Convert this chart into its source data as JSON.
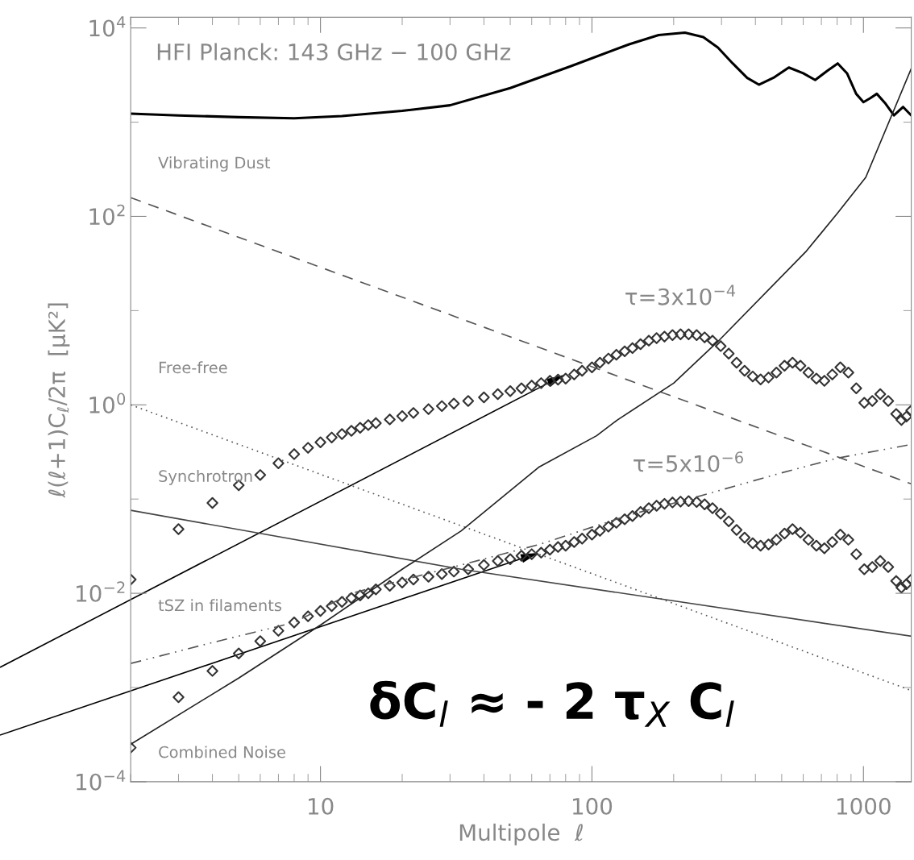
{
  "chart_data": {
    "type": "line",
    "title": "HFI Planck: 143 GHz − 100 GHz",
    "xlabel": "Multipole  ℓ",
    "ylabel": "ℓ(ℓ+1)C$_{ℓ}$/2π  [μK²]",
    "log": "xy",
    "xlim": [
      2,
      1500
    ],
    "ylim": [
      0.0001,
      13000
    ],
    "xticks": [
      10,
      100,
      1000
    ],
    "yticks": [
      {
        "value": 10000,
        "label": "10$^{4}$"
      },
      {
        "value": 100,
        "label": "10$^{2}$"
      },
      {
        "value": 1,
        "label": "10$^{0}$"
      },
      {
        "value": 0.01,
        "label": "10$^{−2}$"
      },
      {
        "value": 0.0001,
        "label": "10$^{−4}$"
      }
    ],
    "series": [
      {
        "color": "#000000",
        "line_style": "solid",
        "x": [
          2,
          3,
          5,
          8,
          12,
          20,
          30,
          50,
          83,
          137,
          176,
          220,
          257,
          291,
          330,
          373,
          412,
          470,
          531,
          600,
          664,
          735,
          804,
          870,
          940,
          1000,
          1060,
          1120,
          1200,
          1295,
          1400,
          1500
        ],
        "values": [
          1230,
          1180,
          1130,
          1100,
          1160,
          1320,
          1510,
          2300,
          3900,
          6700,
          8400,
          8900,
          8000,
          6200,
          4200,
          2950,
          2500,
          3000,
          3800,
          3300,
          2800,
          3500,
          4200,
          3300,
          2000,
          1630,
          1800,
          2000,
          1600,
          1180,
          1450,
          1180
        ]
      },
      {
        "color": "#555555",
        "line_style": "dashed",
        "x": [
          2,
          1500
        ],
        "values": [
          158,
          0.145
        ]
      },
      {
        "color": "#555555",
        "line_style": "dotted",
        "x": [
          2,
          1500
        ],
        "values": [
          1.0,
          0.00093
        ]
      },
      {
        "color": "#444444",
        "line_style": "solid",
        "x": [
          2,
          33,
          1500
        ],
        "values": [
          0.076,
          0.018,
          0.0035
        ]
      },
      {
        "color": "#555555",
        "line_style": "dashdot",
        "x": [
          2,
          4,
          8,
          13,
          33,
          64,
          138,
          228,
          500,
          793,
          1500
        ],
        "values": [
          0.0018,
          0.003,
          0.0049,
          0.01,
          0.02,
          0.033,
          0.068,
          0.1,
          0.19,
          0.27,
          0.38
        ]
      },
      {
        "color": "#222222",
        "line_style": "solid",
        "x": [
          2,
          5,
          10,
          20,
          33,
          64,
          104,
          124,
          200,
          291,
          617,
          800,
          1020,
          1500
        ],
        "values": [
          0.00025,
          0.00126,
          0.0046,
          0.018,
          0.046,
          0.22,
          0.47,
          0.69,
          1.7,
          4.7,
          43,
          107,
          260,
          3700
        ]
      },
      {
        "type": "scatter",
        "name": "τ=3x10$^{−4}$",
        "color": "#333333",
        "marker": "diamond",
        "x": [
          2,
          3,
          4,
          5,
          6,
          7,
          8,
          9,
          10,
          11,
          12,
          13,
          14,
          15,
          16,
          18,
          20,
          22,
          25,
          28,
          31,
          35,
          40,
          45,
          50,
          55,
          60,
          65,
          70,
          75,
          80,
          86,
          92,
          100,
          107,
          115,
          123,
          132,
          141,
          151,
          162,
          173,
          185,
          198,
          212,
          227,
          243,
          260,
          278,
          298,
          319,
          341,
          365,
          391,
          418,
          447,
          478,
          512,
          548,
          586,
          627,
          671,
          718,
          768,
          822,
          880,
          941,
          1007,
          1078,
          1153,
          1234,
          1320,
          1380,
          1440,
          1500
        ],
        "values": [
          0.014,
          0.048,
          0.091,
          0.14,
          0.18,
          0.24,
          0.3,
          0.35,
          0.4,
          0.45,
          0.49,
          0.53,
          0.57,
          0.61,
          0.64,
          0.7,
          0.76,
          0.82,
          0.9,
          0.97,
          1.03,
          1.1,
          1.2,
          1.3,
          1.4,
          1.5,
          1.6,
          1.7,
          1.8,
          1.85,
          1.9,
          2.1,
          2.3,
          2.5,
          2.8,
          3.1,
          3.4,
          3.7,
          4.0,
          4.4,
          4.8,
          5.1,
          5.3,
          5.5,
          5.6,
          5.6,
          5.5,
          5.2,
          4.8,
          4.2,
          3.5,
          2.8,
          2.3,
          2.0,
          1.86,
          1.95,
          2.2,
          2.6,
          2.8,
          2.6,
          2.2,
          1.9,
          1.8,
          2.1,
          2.5,
          2.2,
          1.5,
          1.05,
          1.1,
          1.3,
          1.1,
          0.8,
          0.69,
          0.75,
          0.87
        ]
      },
      {
        "type": "scatter",
        "name": "τ=5x10$^{−6}$",
        "color": "#333333",
        "marker": "diamond",
        "x": [
          2,
          3,
          4,
          5,
          6,
          7,
          8,
          9,
          10,
          11,
          12,
          13,
          14,
          15,
          16,
          18,
          20,
          22,
          25,
          28,
          31,
          35,
          40,
          45,
          50,
          55,
          60,
          65,
          70,
          75,
          80,
          86,
          92,
          100,
          107,
          115,
          123,
          132,
          141,
          151,
          162,
          173,
          185,
          198,
          212,
          227,
          243,
          260,
          278,
          298,
          319,
          341,
          365,
          391,
          418,
          447,
          478,
          512,
          548,
          586,
          627,
          671,
          718,
          768,
          822,
          880,
          941,
          1007,
          1078,
          1153,
          1234,
          1320,
          1380,
          1440,
          1500
        ],
        "values": [
          0.00023,
          0.00079,
          0.0015,
          0.0023,
          0.0031,
          0.004,
          0.0049,
          0.0057,
          0.0065,
          0.0073,
          0.0081,
          0.0089,
          0.0095,
          0.01,
          0.011,
          0.012,
          0.013,
          0.014,
          0.015,
          0.016,
          0.017,
          0.018,
          0.02,
          0.022,
          0.023,
          0.025,
          0.026,
          0.027,
          0.029,
          0.031,
          0.032,
          0.035,
          0.038,
          0.042,
          0.046,
          0.051,
          0.056,
          0.061,
          0.066,
          0.073,
          0.08,
          0.085,
          0.089,
          0.092,
          0.094,
          0.095,
          0.093,
          0.088,
          0.08,
          0.07,
          0.058,
          0.047,
          0.039,
          0.034,
          0.032,
          0.033,
          0.037,
          0.043,
          0.048,
          0.044,
          0.037,
          0.032,
          0.03,
          0.035,
          0.042,
          0.037,
          0.026,
          0.018,
          0.019,
          0.022,
          0.019,
          0.0135,
          0.0115,
          0.0125,
          0.014
        ]
      }
    ],
    "annotations": [
      "Vibrating Dust",
      "Free-free",
      "Synchrotron",
      "tSZ in filaments",
      "Combined Noise",
      "δC$_{l}$ ≈ - 2 τ$_{X}$ C$_{l}$"
    ]
  }
}
